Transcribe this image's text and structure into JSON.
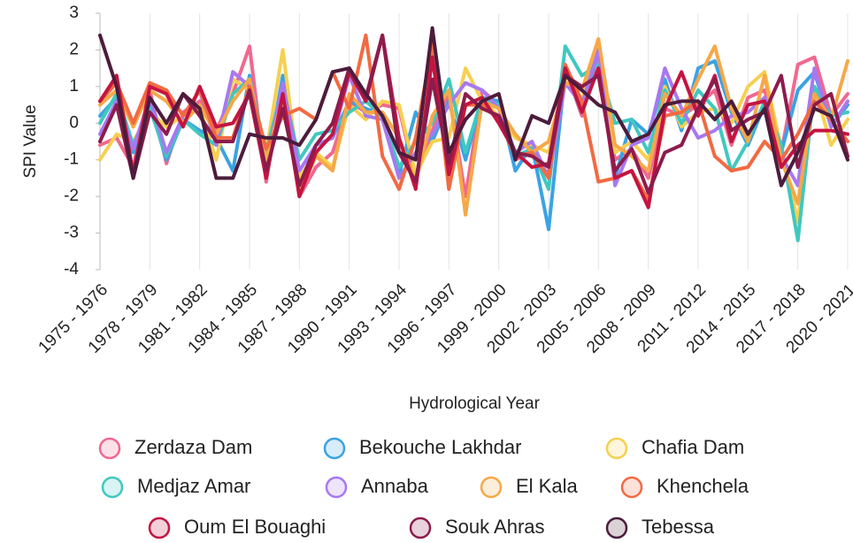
{
  "chart_data": {
    "type": "line",
    "x_label": "Hydrological Year",
    "y_label": "SPI Value",
    "categories": [
      "1975 - 1976",
      null,
      null,
      "1978 - 1979",
      null,
      null,
      "1981 - 1982",
      null,
      null,
      "1984 - 1985",
      null,
      null,
      "1987 - 1988",
      null,
      null,
      "1990 - 1991",
      null,
      null,
      "1993 - 1994",
      null,
      null,
      "1996 - 1997",
      null,
      null,
      "1999 - 2000",
      null,
      null,
      "2002 - 2003",
      null,
      null,
      "2005 - 2006",
      null,
      null,
      "2008 - 2009",
      null,
      null,
      "2011 - 2012",
      null,
      null,
      "2014 - 2015",
      null,
      null,
      "2017 - 2018",
      null,
      null,
      "2020 - 2021"
    ],
    "ylim": [
      -4,
      3
    ],
    "yticks": [
      -4,
      -3,
      -2,
      -1,
      0,
      1,
      2,
      3
    ],
    "grid": "x",
    "series": [
      {
        "name": "Zerdaza Dam",
        "color": "#f06890",
        "values": [
          -0.6,
          -0.4,
          -1.2,
          0.9,
          -1.1,
          0.3,
          0.6,
          -0.2,
          0.8,
          2.1,
          -1.6,
          1.2,
          -2.0,
          -1.2,
          -0.8,
          0.6,
          0.3,
          0.5,
          0.4,
          -1.5,
          -0.2,
          0.8,
          -2.0,
          0.9,
          0.5,
          -1.0,
          -0.8,
          -1.4,
          1.5,
          0.2,
          1.9,
          -1.0,
          -0.7,
          -1.5,
          0.4,
          0.2,
          0.5,
          0.9,
          -0.6,
          0.7,
          0.9,
          -0.8,
          1.6,
          1.8,
          0.2,
          0.8
        ]
      },
      {
        "name": "Bekouche Lakhdar",
        "color": "#3ba3e3",
        "values": [
          0.2,
          0.7,
          -0.8,
          0.5,
          -1.0,
          0.1,
          -0.2,
          -0.4,
          -1.3,
          1.3,
          -1.3,
          1.3,
          -1.7,
          -0.6,
          -0.4,
          0.6,
          0.4,
          0.2,
          -1.4,
          0.3,
          -0.5,
          0.6,
          -1.0,
          0.7,
          0.6,
          -1.3,
          -0.6,
          -2.9,
          1.4,
          0.3,
          2.0,
          -1.5,
          0.1,
          -0.3,
          1.2,
          -0.2,
          1.5,
          1.7,
          0.3,
          -0.6,
          0.5,
          -0.8,
          0.9,
          1.4,
          -0.1,
          0.5
        ]
      },
      {
        "name": "Chafia Dam",
        "color": "#f6d050",
        "values": [
          -1.0,
          -0.3,
          -0.5,
          0.3,
          -0.1,
          0.2,
          0.4,
          -1.0,
          1.2,
          0.9,
          -0.8,
          2.0,
          -1.5,
          -0.8,
          -1.2,
          0.5,
          0.1,
          0.6,
          0.5,
          -1.4,
          -0.5,
          -0.4,
          1.5,
          0.6,
          0.2,
          -0.4,
          -0.6,
          -0.8,
          1.3,
          0.6,
          2.2,
          -0.8,
          -0.5,
          -1.0,
          1.0,
          -0.1,
          0.3,
          0.4,
          0.0,
          1.0,
          1.4,
          -0.7,
          -2.7,
          1.0,
          -0.6,
          0.1
        ]
      },
      {
        "name": "Medjaz Amar",
        "color": "#40c8c0",
        "values": [
          0.0,
          0.8,
          -0.6,
          0.4,
          -0.9,
          0.1,
          -0.3,
          -0.6,
          0.8,
          1.2,
          -0.8,
          1.0,
          -1.0,
          -0.3,
          -0.2,
          0.3,
          0.6,
          0.2,
          -1.2,
          -0.5,
          0.0,
          1.2,
          -0.8,
          0.7,
          0.5,
          -0.9,
          -0.7,
          -1.8,
          2.1,
          1.3,
          1.6,
          0.0,
          0.1,
          -0.8,
          0.9,
          0.0,
          0.9,
          0.4,
          -1.3,
          -0.5,
          0.6,
          -0.6,
          -3.2,
          1.0,
          0.2,
          0.3
        ]
      },
      {
        "name": "Annaba",
        "color": "#a878f0",
        "values": [
          -0.3,
          0.6,
          -0.7,
          0.7,
          -0.8,
          0.2,
          0.9,
          -0.6,
          1.4,
          1.0,
          -1.2,
          1.1,
          -1.3,
          -0.6,
          -0.4,
          1.3,
          0.2,
          0.1,
          -1.5,
          -0.8,
          -0.3,
          0.5,
          1.1,
          0.9,
          0.4,
          -0.8,
          -0.5,
          -1.5,
          1.1,
          0.5,
          2.0,
          -1.7,
          -0.6,
          -0.4,
          1.5,
          0.4,
          -0.4,
          -0.2,
          0.2,
          0.3,
          0.7,
          -0.9,
          -1.7,
          1.5,
          -0.1,
          0.6
        ]
      },
      {
        "name": "El Kala",
        "color": "#f6a848",
        "values": [
          0.5,
          0.9,
          -0.1,
          0.9,
          0.6,
          0.0,
          0.5,
          -0.3,
          0.6,
          1.2,
          -1.0,
          0.7,
          -1.9,
          -0.9,
          -1.3,
          0.8,
          0.3,
          0.3,
          -0.4,
          -1.6,
          0.2,
          0.9,
          -2.5,
          0.6,
          0.4,
          -0.3,
          -0.8,
          -0.5,
          1.1,
          0.9,
          2.3,
          -0.6,
          -0.9,
          -1.3,
          0.8,
          0.2,
          1.2,
          2.1,
          0.4,
          -0.5,
          1.3,
          -1.0,
          -2.2,
          0.8,
          0.1,
          1.7
        ]
      },
      {
        "name": "Khenchela",
        "color": "#f26a42",
        "values": [
          0.6,
          1.1,
          0.0,
          1.1,
          0.9,
          0.2,
          0.9,
          -0.4,
          -0.4,
          1.0,
          -0.7,
          0.2,
          0.4,
          0.1,
          1.4,
          0.4,
          2.4,
          -0.9,
          -1.8,
          -0.4,
          2.2,
          -1.8,
          0.5,
          0.5,
          0.1,
          -0.9,
          -0.8,
          -1.5,
          1.6,
          0.6,
          -1.6,
          -1.5,
          -1.3,
          -2.1,
          0.2,
          0.3,
          0.6,
          -0.9,
          -1.3,
          -1.2,
          -0.5,
          -1.0,
          -0.3,
          0.6,
          0.1,
          -0.5
        ]
      },
      {
        "name": "Oum El Bouaghi",
        "color": "#c41440",
        "values": [
          0.6,
          1.3,
          -1.4,
          1.0,
          0.8,
          -0.1,
          1.0,
          -0.1,
          0.0,
          0.8,
          -1.5,
          0.8,
          -2.0,
          -0.8,
          -0.3,
          1.4,
          0.6,
          2.4,
          -0.4,
          -1.8,
          1.8,
          -1.4,
          0.5,
          0.7,
          0.0,
          -0.8,
          -1.2,
          -1.1,
          1.5,
          0.3,
          1.5,
          -1.5,
          -1.3,
          -2.3,
          0.4,
          1.4,
          0.2,
          1.3,
          -0.5,
          0.5,
          0.6,
          -1.2,
          -0.6,
          -0.2,
          -0.2,
          -0.3
        ]
      },
      {
        "name": "Souk Ahras",
        "color": "#8c1c4c",
        "values": [
          -0.5,
          0.5,
          -1.5,
          0.3,
          -0.3,
          0.8,
          0.2,
          -0.5,
          -0.5,
          0.9,
          -1.3,
          0.4,
          -1.7,
          -0.6,
          0.0,
          1.5,
          0.7,
          2.4,
          -0.8,
          -1.6,
          1.2,
          -1.1,
          0.8,
          0.4,
          0.2,
          -0.8,
          -0.9,
          -1.2,
          1.3,
          1.0,
          1.3,
          -1.3,
          -0.7,
          -1.9,
          -0.8,
          -0.6,
          0.4,
          1.2,
          -0.2,
          0.1,
          0.3,
          1.3,
          -1.2,
          0.5,
          0.8,
          -0.9
        ]
      },
      {
        "name": "Tebessa",
        "color": "#4c1c3c",
        "values": [
          2.4,
          1.0,
          -1.5,
          0.7,
          0.0,
          0.8,
          0.4,
          -1.5,
          -1.5,
          -0.3,
          -0.4,
          -0.4,
          -0.6,
          0.1,
          1.4,
          1.5,
          0.8,
          0.2,
          -0.8,
          -1.0,
          2.6,
          -0.8,
          0.1,
          0.6,
          0.8,
          -1.0,
          0.2,
          0.0,
          1.3,
          0.9,
          0.5,
          0.3,
          -0.5,
          -0.3,
          0.5,
          0.6,
          0.6,
          0.1,
          0.6,
          -0.3,
          0.4,
          -1.7,
          -0.8,
          0.4,
          0.2,
          -1.0
        ]
      }
    ]
  }
}
